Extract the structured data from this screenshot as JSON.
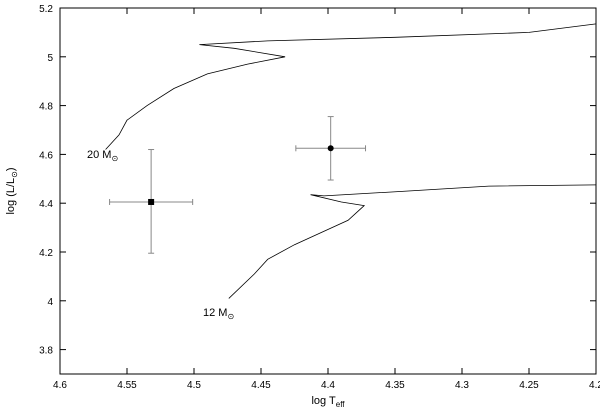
{
  "chart_data": {
    "type": "scatter",
    "xlabel": "log T",
    "xlabel_sub": "eff",
    "ylabel": "log (L/L",
    "ylabel_sub": "⊙",
    "ylabel_end": ")",
    "xlim": [
      4.6,
      4.2
    ],
    "x_reversed": true,
    "ylim": [
      3.7,
      5.2
    ],
    "x_ticks": [
      "4.6",
      "4.55",
      "4.5",
      "4.45",
      "4.4",
      "4.35",
      "4.3",
      "4.25",
      "4.2"
    ],
    "y_ticks": [
      "3.8",
      "4",
      "4.2",
      "4.4",
      "4.6",
      "4.8",
      "5",
      "5.2"
    ],
    "grid": false,
    "tracks": [
      {
        "label": "20 M",
        "label_sub": "⊙",
        "points": [
          [
            4.566,
            4.62
          ],
          [
            4.556,
            4.68
          ],
          [
            4.55,
            4.74
          ],
          [
            4.535,
            4.8
          ],
          [
            4.515,
            4.87
          ],
          [
            4.49,
            4.93
          ],
          [
            4.46,
            4.97
          ],
          [
            4.432,
            5.0
          ],
          [
            4.47,
            5.035
          ],
          [
            4.496,
            5.05
          ],
          [
            4.445,
            5.065
          ],
          [
            4.35,
            5.08
          ],
          [
            4.25,
            5.1
          ],
          [
            4.2,
            5.135
          ]
        ]
      },
      {
        "label": "12 M",
        "label_sub": "⊙",
        "points": [
          [
            4.474,
            4.01
          ],
          [
            4.455,
            4.11
          ],
          [
            4.445,
            4.17
          ],
          [
            4.425,
            4.23
          ],
          [
            4.405,
            4.28
          ],
          [
            4.385,
            4.33
          ],
          [
            4.373,
            4.39
          ],
          [
            4.39,
            4.405
          ],
          [
            4.413,
            4.435
          ],
          [
            4.403,
            4.43
          ],
          [
            4.34,
            4.45
          ],
          [
            4.28,
            4.47
          ],
          [
            4.2,
            4.475
          ]
        ]
      }
    ],
    "stars": [
      {
        "marker": "square",
        "x": 4.532,
        "y": 4.405,
        "x_err": 0.031,
        "y_err_low": 0.21,
        "y_err_high": 0.215
      },
      {
        "marker": "circle",
        "x": 4.398,
        "y": 4.625,
        "x_err": 0.026,
        "y_err_low": 0.13,
        "y_err_high": 0.13
      }
    ]
  }
}
